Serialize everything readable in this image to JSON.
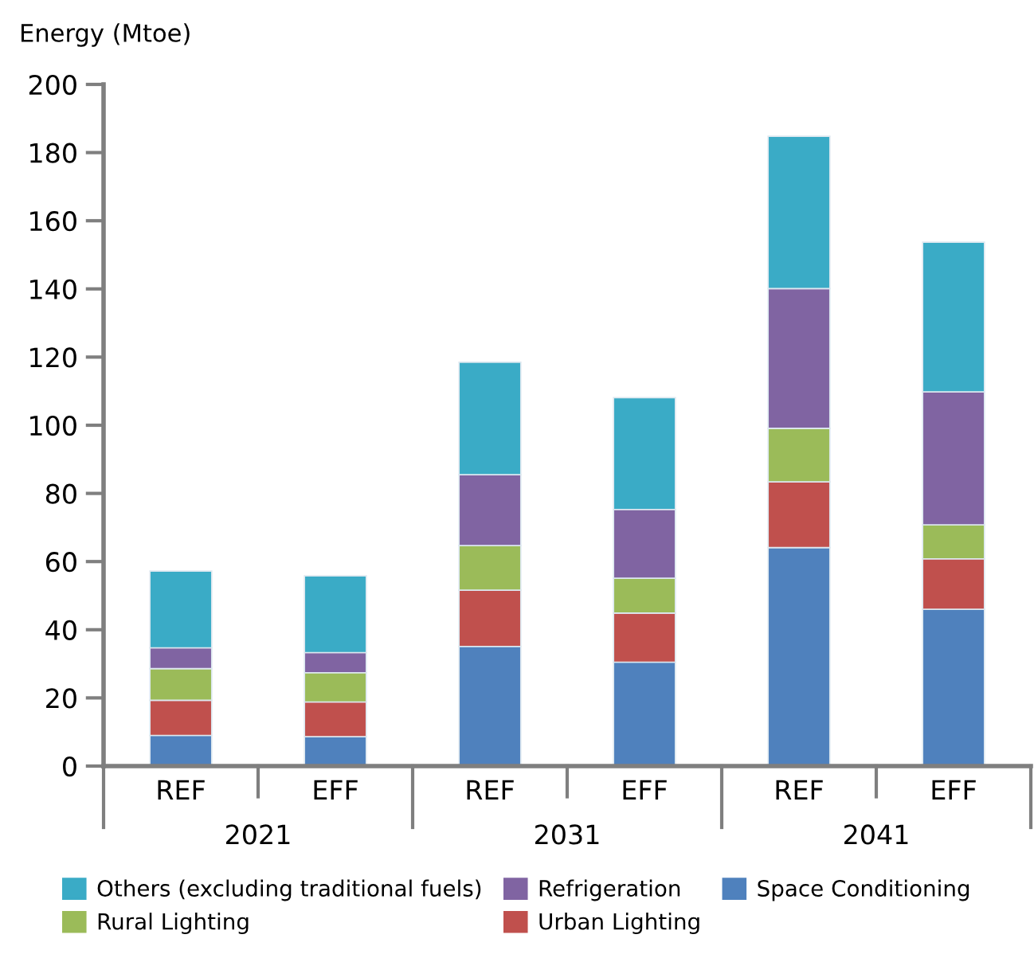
{
  "chart_data": {
    "type": "bar",
    "stacked": true,
    "ylabel": "Energy (Mtoe)",
    "categories": [
      "REF",
      "EFF",
      "REF",
      "EFF",
      "REF",
      "EFF"
    ],
    "annotations": [
      "2021",
      "2031",
      "2041"
    ],
    "series": [
      {
        "name": "Space Conditioning",
        "color": "#4f81bd",
        "values": [
          9,
          8.6,
          35.1,
          30.5,
          64.1,
          46.0
        ]
      },
      {
        "name": "Urban Lighting",
        "color": "#c0504d",
        "values": [
          10.3,
          10.2,
          16.5,
          14.4,
          19.3,
          14.8
        ]
      },
      {
        "name": "Rural Lighting",
        "color": "#9bbb59",
        "values": [
          9.3,
          8.6,
          13.1,
          10.2,
          15.7,
          10.0
        ]
      },
      {
        "name": "Refrigeration",
        "color": "#8064a2",
        "values": [
          6.1,
          5.9,
          20.8,
          20.2,
          41.0,
          39.0
        ]
      },
      {
        "name": "Others (excluding traditional fuels)",
        "color": "#3aabc6",
        "values": [
          22.5,
          22.5,
          33.0,
          32.8,
          44.7,
          43.9
        ]
      }
    ],
    "ylim": [
      0,
      200
    ],
    "yticks": [
      0,
      20,
      40,
      60,
      80,
      100,
      120,
      140,
      160,
      180,
      200
    ],
    "grid": false,
    "legend": "bottom"
  }
}
